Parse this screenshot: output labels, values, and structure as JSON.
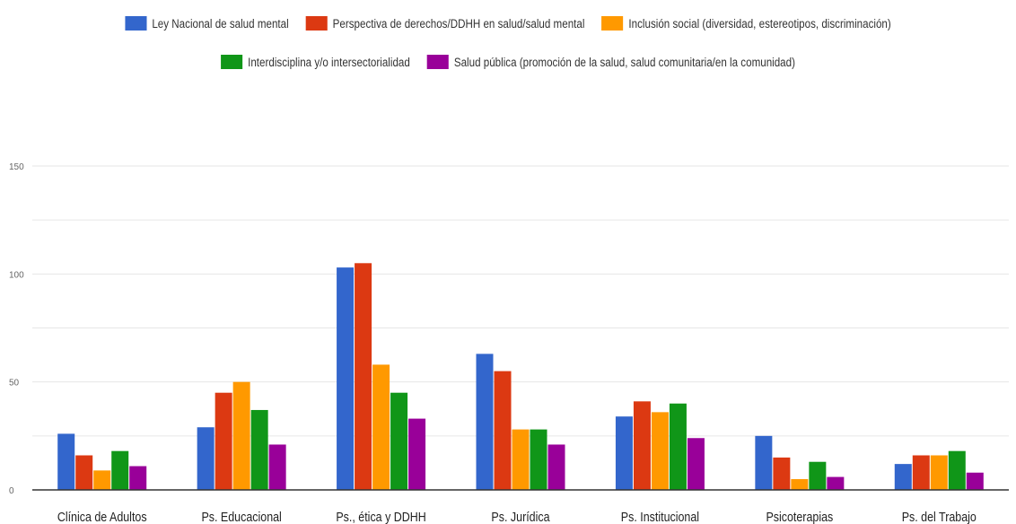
{
  "chart_data": {
    "type": "bar",
    "categories": [
      "Clínica de Adultos",
      "Ps. Educacional",
      "Ps., ética y DDHH",
      "Ps. Jurídica",
      "Ps. Institucional",
      "Psicoterapias",
      "Ps. del Trabajo"
    ],
    "series": [
      {
        "name": "Ley Nacional de salud mental",
        "color": "#3366cc",
        "values": [
          26,
          29,
          103,
          63,
          34,
          25,
          12
        ]
      },
      {
        "name": "Perspectiva de derechos/DDHH en salud/salud mental",
        "color": "#dc3912",
        "values": [
          16,
          45,
          105,
          55,
          41,
          15,
          16
        ]
      },
      {
        "name": "Inclusión social (diversidad, estereotipos, discriminación)",
        "color": "#ff9900",
        "values": [
          9,
          50,
          58,
          28,
          36,
          5,
          16
        ]
      },
      {
        "name": "Interdisciplina y/o intersectorialidad",
        "color": "#109618",
        "values": [
          18,
          37,
          45,
          28,
          40,
          13,
          18
        ]
      },
      {
        "name": "Salud pública (promoción de la salud, salud comunitaria/en la comunidad)",
        "color": "#990099",
        "values": [
          11,
          21,
          33,
          21,
          24,
          6,
          8
        ]
      }
    ],
    "yticks": [
      "0",
      "50",
      "100",
      "150"
    ],
    "ylim": [
      0,
      150
    ],
    "grid": true,
    "legend": "top"
  }
}
